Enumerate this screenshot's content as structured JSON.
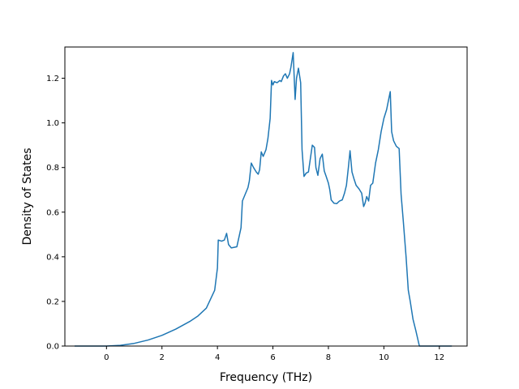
{
  "chart_data": {
    "type": "line",
    "xlabel": "Frequency (THz)",
    "ylabel": "Density of States",
    "xlim": [
      -1.5,
      13.0
    ],
    "ylim": [
      0.0,
      1.34
    ],
    "xticks": [
      0,
      2,
      4,
      6,
      8,
      10,
      12
    ],
    "yticks": [
      0.0,
      0.2,
      0.4,
      0.6,
      0.8,
      1.0,
      1.2
    ],
    "xtick_labels": [
      "0",
      "2",
      "4",
      "6",
      "8",
      "10",
      "12"
    ],
    "ytick_labels": [
      "0.0",
      "0.2",
      "0.4",
      "0.6",
      "0.8",
      "1.0",
      "1.2"
    ],
    "grid": false,
    "line_color": "#1f77b4",
    "series": [
      {
        "points": [
          [
            -1.15,
            0.0
          ],
          [
            -0.5,
            0.0
          ],
          [
            0.0,
            0.0
          ],
          [
            0.5,
            0.003
          ],
          [
            1.0,
            0.012
          ],
          [
            1.5,
            0.027
          ],
          [
            2.0,
            0.048
          ],
          [
            2.5,
            0.076
          ],
          [
            3.0,
            0.11
          ],
          [
            3.3,
            0.135
          ],
          [
            3.6,
            0.17
          ],
          [
            3.9,
            0.25
          ],
          [
            4.0,
            0.35
          ],
          [
            4.03,
            0.475
          ],
          [
            4.15,
            0.47
          ],
          [
            4.25,
            0.475
          ],
          [
            4.33,
            0.505
          ],
          [
            4.4,
            0.455
          ],
          [
            4.5,
            0.44
          ],
          [
            4.7,
            0.445
          ],
          [
            4.85,
            0.53
          ],
          [
            4.9,
            0.65
          ],
          [
            5.0,
            0.68
          ],
          [
            5.1,
            0.71
          ],
          [
            5.15,
            0.74
          ],
          [
            5.22,
            0.82
          ],
          [
            5.3,
            0.8
          ],
          [
            5.4,
            0.78
          ],
          [
            5.47,
            0.77
          ],
          [
            5.52,
            0.79
          ],
          [
            5.58,
            0.87
          ],
          [
            5.65,
            0.85
          ],
          [
            5.75,
            0.88
          ],
          [
            5.82,
            0.93
          ],
          [
            5.9,
            1.02
          ],
          [
            5.95,
            1.19
          ],
          [
            6.0,
            1.17
          ],
          [
            6.05,
            1.185
          ],
          [
            6.15,
            1.18
          ],
          [
            6.25,
            1.19
          ],
          [
            6.3,
            1.185
          ],
          [
            6.38,
            1.21
          ],
          [
            6.45,
            1.22
          ],
          [
            6.52,
            1.2
          ],
          [
            6.6,
            1.22
          ],
          [
            6.65,
            1.25
          ],
          [
            6.73,
            1.315
          ],
          [
            6.8,
            1.105
          ],
          [
            6.85,
            1.2
          ],
          [
            6.92,
            1.245
          ],
          [
            7.0,
            1.18
          ],
          [
            7.05,
            0.88
          ],
          [
            7.12,
            0.76
          ],
          [
            7.2,
            0.775
          ],
          [
            7.28,
            0.78
          ],
          [
            7.35,
            0.84
          ],
          [
            7.42,
            0.9
          ],
          [
            7.5,
            0.89
          ],
          [
            7.55,
            0.8
          ],
          [
            7.62,
            0.765
          ],
          [
            7.7,
            0.84
          ],
          [
            7.78,
            0.86
          ],
          [
            7.85,
            0.785
          ],
          [
            7.92,
            0.76
          ],
          [
            8.0,
            0.73
          ],
          [
            8.05,
            0.7
          ],
          [
            8.1,
            0.655
          ],
          [
            8.2,
            0.64
          ],
          [
            8.3,
            0.638
          ],
          [
            8.4,
            0.65
          ],
          [
            8.5,
            0.655
          ],
          [
            8.58,
            0.685
          ],
          [
            8.65,
            0.72
          ],
          [
            8.72,
            0.8
          ],
          [
            8.78,
            0.875
          ],
          [
            8.85,
            0.78
          ],
          [
            8.92,
            0.75
          ],
          [
            9.0,
            0.72
          ],
          [
            9.1,
            0.705
          ],
          [
            9.2,
            0.685
          ],
          [
            9.27,
            0.625
          ],
          [
            9.32,
            0.64
          ],
          [
            9.38,
            0.67
          ],
          [
            9.45,
            0.65
          ],
          [
            9.52,
            0.72
          ],
          [
            9.6,
            0.73
          ],
          [
            9.7,
            0.82
          ],
          [
            9.8,
            0.88
          ],
          [
            9.9,
            0.96
          ],
          [
            10.0,
            1.02
          ],
          [
            10.1,
            1.06
          ],
          [
            10.18,
            1.11
          ],
          [
            10.23,
            1.14
          ],
          [
            10.28,
            0.96
          ],
          [
            10.35,
            0.92
          ],
          [
            10.45,
            0.895
          ],
          [
            10.55,
            0.885
          ],
          [
            10.62,
            0.68
          ],
          [
            10.7,
            0.56
          ],
          [
            10.8,
            0.4
          ],
          [
            10.88,
            0.25
          ],
          [
            10.95,
            0.2
          ],
          [
            11.05,
            0.12
          ],
          [
            11.15,
            0.07
          ],
          [
            11.28,
            0.0
          ],
          [
            11.6,
            0.0
          ],
          [
            12.0,
            0.0
          ],
          [
            12.45,
            0.0
          ]
        ]
      }
    ]
  }
}
